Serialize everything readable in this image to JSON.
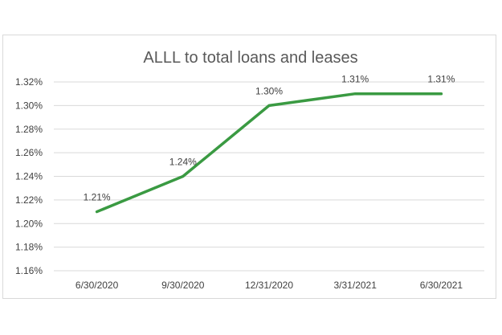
{
  "chart_data": {
    "type": "line",
    "title": "ALLL to total loans and leases",
    "xlabel": "",
    "ylabel": "",
    "categories": [
      "6/30/2020",
      "9/30/2020",
      "12/31/2020",
      "3/31/2021",
      "6/30/2021"
    ],
    "series": [
      {
        "values": [
          1.21,
          1.24,
          1.3,
          1.31,
          1.31
        ],
        "data_labels": [
          "1.21%",
          "1.24%",
          "1.30%",
          "1.31%",
          "1.31%"
        ],
        "color": "#3a9a42"
      }
    ],
    "ylim": [
      1.16,
      1.32
    ],
    "y_ticks": [
      1.16,
      1.18,
      1.2,
      1.22,
      1.24,
      1.26,
      1.28,
      1.3,
      1.32
    ],
    "y_tick_labels": [
      "1.16%",
      "1.18%",
      "1.20%",
      "1.22%",
      "1.24%",
      "1.26%",
      "1.28%",
      "1.30%",
      "1.32%"
    ],
    "grid": true,
    "legend": "none"
  }
}
